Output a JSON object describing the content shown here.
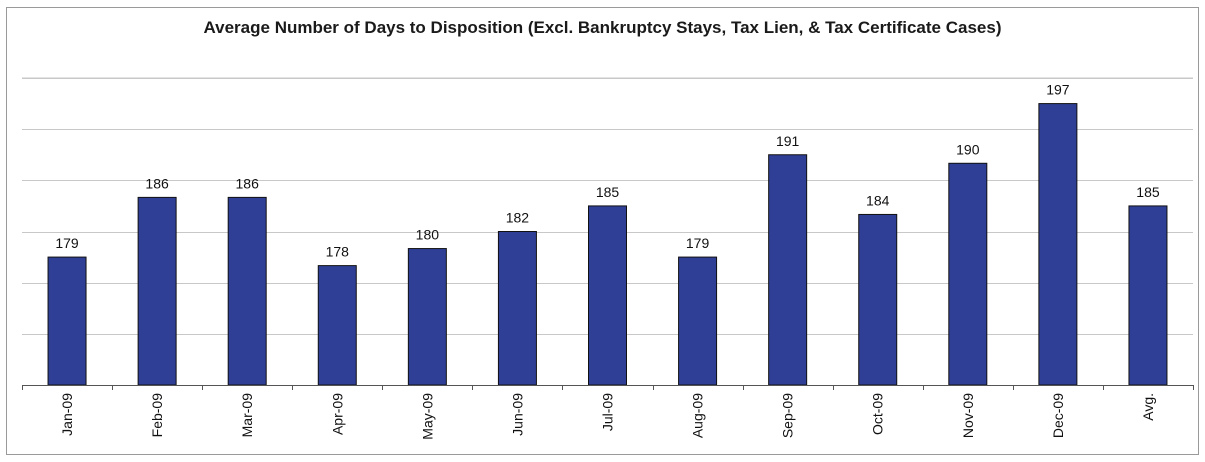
{
  "chart_data": {
    "type": "bar",
    "title": "Average Number of Days to Disposition (Excl. Bankruptcy Stays, Tax Lien, & Tax Certificate Cases)",
    "xlabel": "",
    "ylabel": "",
    "categories": [
      "Jan-09",
      "Feb-09",
      "Mar-09",
      "Apr-09",
      "May-09",
      "Jun-09",
      "Jul-09",
      "Aug-09",
      "Sep-09",
      "Oct-09",
      "Nov-09",
      "Dec-09",
      "Avg."
    ],
    "values": [
      179,
      186,
      186,
      178,
      180,
      182,
      185,
      179,
      191,
      184,
      190,
      197,
      185
    ],
    "ylim": [
      164,
      200
    ],
    "grid": true,
    "legend": "none",
    "bar_color": "#2f3f96",
    "grid_color": "#c8c8c8"
  }
}
